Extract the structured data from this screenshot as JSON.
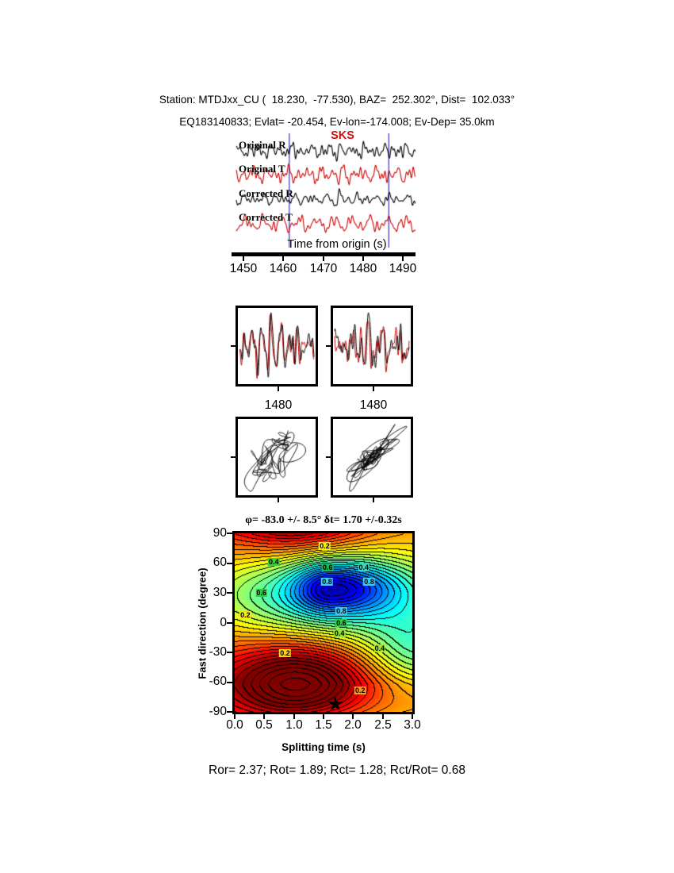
{
  "header": {
    "line1": "Station: MTDJxx_CU (  18.230,  -77.530), BAZ=  252.302°, Dist=  102.033°",
    "line2": "EQ183140833; Evlat= -20.454, Ev-lon=-174.008; Ev-Dep= 35.0km"
  },
  "waveforms": {
    "phase_label": "SKS",
    "axis_label": "Time from origin (s)",
    "traces": [
      {
        "label": "Original R",
        "color": "#000000"
      },
      {
        "label": "Original T",
        "color": "#cc0000"
      },
      {
        "label": "Corrected R",
        "color": "#000000"
      },
      {
        "label": "Corrected T",
        "color": "#cc0000"
      }
    ],
    "xticks": [
      "1450",
      "1460",
      "1470",
      "1480",
      "1490"
    ],
    "time_range": [
      1447,
      1494
    ],
    "window_lines": [
      1461.5,
      1486.5
    ],
    "phase_time": 1473.5,
    "window_color": "#5050c0",
    "phase_color": "#cc1111"
  },
  "small_panels": {
    "left_tick_label": "1480",
    "right_tick_label": "1480"
  },
  "contour": {
    "title": "φ= -83.0 +/- 8.5° δt= 1.70 +/-0.32s",
    "xlabel": "Splitting time (s)",
    "ylabel": "Fast direction (degree)",
    "xticks": [
      "0.0",
      "0.5",
      "1.0",
      "1.5",
      "2.0",
      "2.5",
      "3.0"
    ],
    "yticks": [
      "90",
      "60",
      "30",
      "0",
      "-30",
      "-60",
      "-90"
    ],
    "star": {
      "symbol": "★",
      "dt": 1.7,
      "phi": -83.0
    },
    "labels": [
      {
        "text": "0.2",
        "t": 1.52,
        "phi": 77,
        "bg": "#f7e81c"
      },
      {
        "text": "0.4",
        "t": 0.66,
        "phi": 61,
        "bg": "#3bd23b"
      },
      {
        "text": "0.6",
        "t": 1.57,
        "phi": 56,
        "bg": "#12b95a"
      },
      {
        "text": "0.4",
        "t": 2.18,
        "phi": 56,
        "bg": "#37d8c0"
      },
      {
        "text": "0.8",
        "t": 1.56,
        "phi": 41,
        "bg": "#38cdf5"
      },
      {
        "text": "0.8",
        "t": 2.27,
        "phi": 41,
        "bg": "#38cdf5"
      },
      {
        "text": "0.6",
        "t": 0.45,
        "phi": 30,
        "bg": "#2fcc43"
      },
      {
        "text": "0.8",
        "t": 1.8,
        "phi": 12,
        "bg": "#38cdf5"
      },
      {
        "text": "0.6",
        "t": 1.8,
        "phi": 0,
        "bg": "#2fcc43"
      },
      {
        "text": "0.4",
        "t": 1.77,
        "phi": -11,
        "bg": "#8ee32f"
      },
      {
        "text": "0.2",
        "t": 0.18,
        "phi": 8,
        "bg": "#f7e81c"
      },
      {
        "text": "0.2",
        "t": 0.85,
        "phi": -31,
        "bg": "#ffd21e"
      },
      {
        "text": "0.4",
        "t": 2.45,
        "phi": -26,
        "bg": "#a8e42c"
      },
      {
        "text": "0.2",
        "t": 2.12,
        "phi": -68,
        "bg": "#ff9a1f"
      }
    ]
  },
  "footer": {
    "text": "Ror= 2.37; Rot= 1.89; Rct= 1.28; Rct/Rot= 0.68"
  },
  "metrics": {
    "Ror": "2.37",
    "Rot": "1.89",
    "Rct": "1.28",
    "Rct_over_Rot": "0.68"
  },
  "chart_data": [
    {
      "type": "line",
      "title": "Seismogram traces around SKS arrival",
      "xlabel": "Time from origin (s)",
      "xlim": [
        1447,
        1494
      ],
      "xticks": [
        1450,
        1460,
        1470,
        1480,
        1490
      ],
      "series": [
        {
          "name": "Original R",
          "color": "#000000"
        },
        {
          "name": "Original T",
          "color": "#cc0000"
        },
        {
          "name": "Corrected R",
          "color": "#000000"
        },
        {
          "name": "Corrected T",
          "color": "#cc0000"
        }
      ],
      "annotations": {
        "phase": "SKS",
        "phase_time_s": 1473.5,
        "analysis_window_s": [
          1461.5,
          1486.5
        ]
      }
    },
    {
      "type": "line",
      "title": "Fast/slow waveform overlays (black vs red)",
      "panels": 2,
      "xticks": [
        1480
      ]
    },
    {
      "type": "scatter",
      "title": "Particle motion hodograms (original, corrected)",
      "panels": 2
    },
    {
      "type": "heatmap",
      "title": "φ= -83.0 +/- 8.5° δt= 1.70 +/-0.32s",
      "xlabel": "Splitting time (s)",
      "ylabel": "Fast direction (degree)",
      "xlim": [
        0.0,
        3.0
      ],
      "ylim": [
        -90,
        90
      ],
      "xticks": [
        0.0,
        0.5,
        1.0,
        1.5,
        2.0,
        2.5,
        3.0
      ],
      "yticks": [
        90,
        60,
        30,
        0,
        -30,
        -60,
        -90
      ],
      "contour_interval": 0.05,
      "labeled_contours": [
        0.2,
        0.4,
        0.6,
        0.8
      ],
      "maximum_region": {
        "dt_s": 1.6,
        "phi_deg": 35
      },
      "best_solution_marker": {
        "dt_s": 1.7,
        "phi_deg": -83.0
      },
      "solution": {
        "phi_deg": -83.0,
        "phi_err_deg": 8.5,
        "dt_s": 1.7,
        "dt_err_s": 0.32
      },
      "quality_metrics": {
        "Ror": 2.37,
        "Rot": 1.89,
        "Rct": 1.28,
        "Rct/Rot": 0.68
      }
    }
  ]
}
